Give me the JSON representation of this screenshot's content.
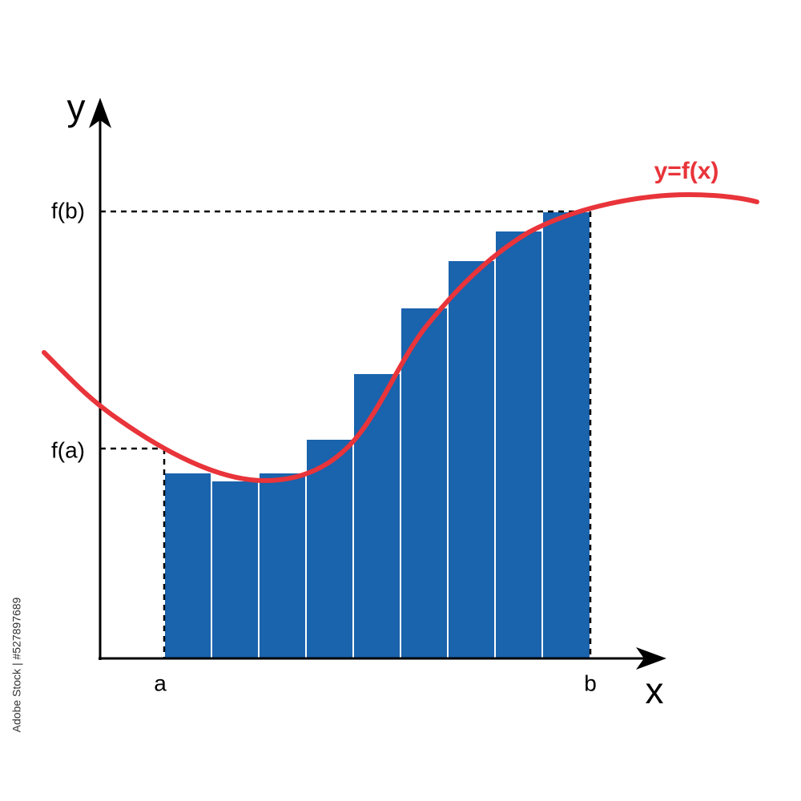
{
  "axes": {
    "y_label": "y",
    "x_label": "x"
  },
  "y_marks": {
    "upper": "f(b)",
    "lower": "f(a)"
  },
  "x_marks": {
    "start": "a",
    "end": "b"
  },
  "curve_label": "y=f(x)",
  "side_note": "Adobe Stock | #527897689"
}
